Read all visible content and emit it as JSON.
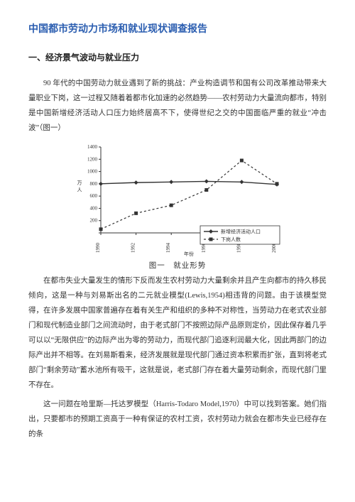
{
  "title": "中国都市劳动力市场和就业现状调查报告",
  "section1": {
    "heading": "一、经济景气波动与就业压力",
    "p1": "90 年代的中国劳动力就业遇到了新的挑战：产业构造调节和国有公司改革推动带来大量职业下岗，这一过程又随着着都市化加速的必然趋势——农村劳动力大量流向都市，特别是中国新增经济活动人口压力始终居高不下，使得世纪之交的中国面临严重的就业“冲击波”（图一）",
    "p2": "在都市失业大量发生的情形下反而发生农村劳动力大量剩余并且产生向都市的持久移民倾向，这是一种与刘易斯出名的二元就业模型(Lewis,1954)相违背的问题。由于该模型觉得，在许多发展中国家普遍存在着有关生产和组织的多种不对称性，当劳动力在老式农业部门和现代制造业部门之间流动时，由于老式部门不按照边际产品原则定价，因此保存着几乎可以以“无限供应”的边际产出为零的劳动力，而现代部门追逐利润最大化，因此两部门的边际产出并不相等。在刘易斯看来，经济发展就是现代部门通过资本积累而扩张，直到将老式部门“剩余劳动”蓄水池所有吸干，这就是说，老式部门存在着大量劳动剩余，而现代部门里不存在。",
    "p3": "这一问题在哈里斯—托达罗模型（Harris-Todaro Model,1970）中可以找到答案。她们指出，只要都市的预期工资高于一种有保证的农村工资，农村劳动力就会在都市失业已经存在的条"
  },
  "chart": {
    "type": "line",
    "ylabel": "万人",
    "xlabel": "年份",
    "title": "图一　就业形势",
    "ylim": [
      0,
      1400
    ],
    "ytick_step": 200,
    "x_ticks": [
      "1990",
      "1992",
      "1994",
      "1996",
      "1998",
      "2000"
    ],
    "series": [
      {
        "name": "新增经济活动人口",
        "marker": "diamond",
        "dashed": false,
        "values": [
          800,
          820,
          830,
          840,
          830,
          790
        ]
      },
      {
        "name": "下岗人数",
        "marker": "square",
        "dashed": true,
        "values": [
          60,
          320,
          450,
          700,
          1180,
          800
        ]
      }
    ],
    "colors": {
      "line": "#333333",
      "grid": "#333333",
      "bg": "#ffffff"
    },
    "font": {
      "axis_label_pt": 9,
      "tick_pt": 7,
      "legend_pt": 7
    }
  }
}
